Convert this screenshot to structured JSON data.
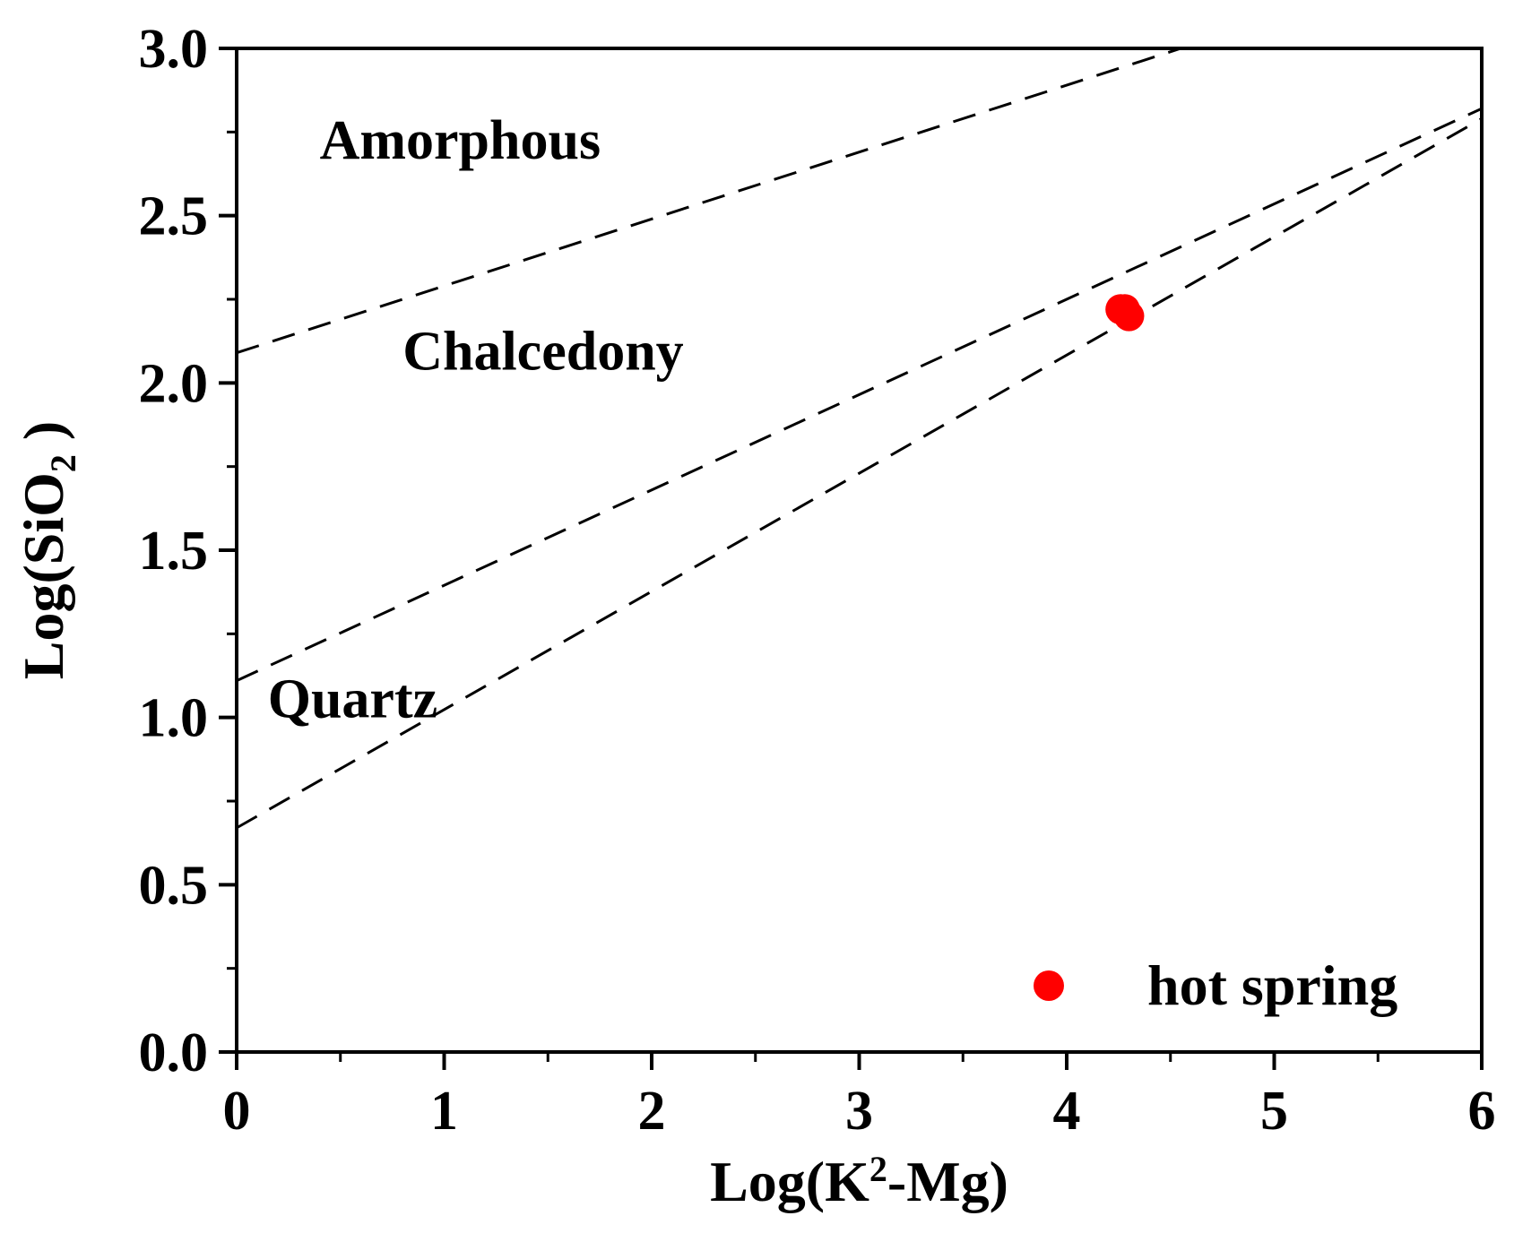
{
  "chart_data": {
    "type": "scatter",
    "xlabel_parts": [
      "Log(K",
      "2",
      "-Mg)"
    ],
    "ylabel_parts": [
      "Log(SiO",
      "2",
      " )"
    ],
    "xlim": [
      0,
      6
    ],
    "ylim": [
      0.0,
      3.0
    ],
    "x_ticks": [
      0,
      1,
      2,
      3,
      4,
      5,
      6
    ],
    "x_tick_labels": [
      "0",
      "1",
      "2",
      "3",
      "4",
      "5",
      "6"
    ],
    "y_ticks": [
      0.0,
      0.5,
      1.0,
      1.5,
      2.0,
      2.5,
      3.0
    ],
    "y_tick_labels": [
      "0.0",
      "0.5",
      "1.0",
      "1.5",
      "2.0",
      "2.5",
      "3.0"
    ],
    "x_minor_step": 0.5,
    "y_minor_step": 0.25,
    "reference_lines": [
      {
        "name": "amorphous-line",
        "x": [
          0,
          4.55
        ],
        "y": [
          2.09,
          3.0
        ]
      },
      {
        "name": "chalcedony-line",
        "x": [
          0,
          6
        ],
        "y": [
          1.11,
          2.82
        ]
      },
      {
        "name": "quartz-line",
        "x": [
          0,
          6
        ],
        "y": [
          0.67,
          2.79
        ]
      }
    ],
    "region_labels": [
      {
        "name": "amorphous",
        "text": "Amorphous",
        "x": 0.4,
        "y": 2.67
      },
      {
        "name": "chalcedony",
        "text": "Chalcedony",
        "x": 0.8,
        "y": 2.04
      },
      {
        "name": "quartz",
        "text": "Quartz",
        "x": 0.15,
        "y": 1.0
      }
    ],
    "series": [
      {
        "name": "hot spring",
        "color": "#ff0000",
        "points": [
          {
            "x": 4.26,
            "y": 2.22
          },
          {
            "x": 4.28,
            "y": 2.22
          },
          {
            "x": 4.3,
            "y": 2.2
          }
        ]
      }
    ],
    "legend": {
      "label": "hot spring",
      "position": "bottom-right"
    }
  }
}
